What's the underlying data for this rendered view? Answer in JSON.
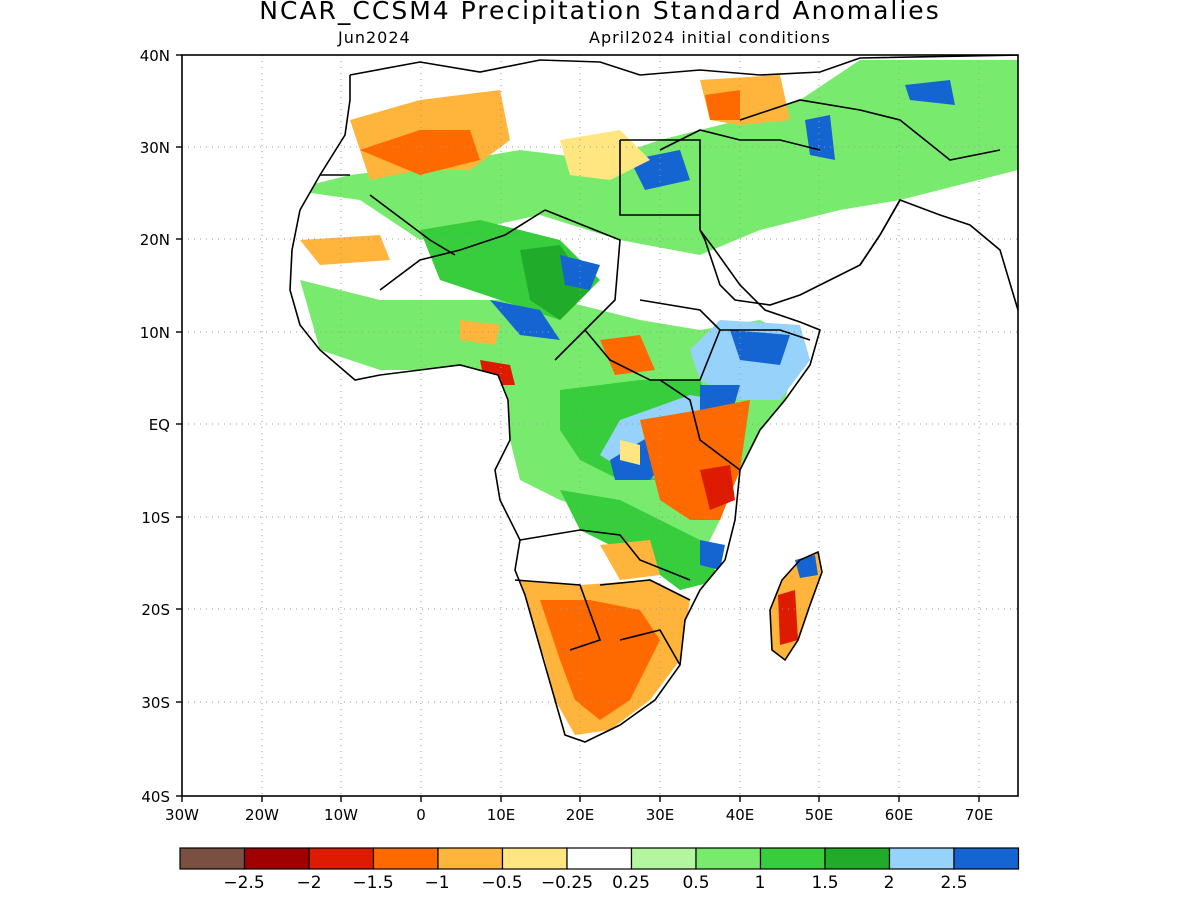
{
  "header": {
    "title": "NCAR_CCSM4 Precipitation Standard Anomalies",
    "month": "Jun2024",
    "init": "April2024 initial conditions"
  },
  "axes": {
    "lat_labels": [
      "40N",
      "30N",
      "20N",
      "10N",
      "EQ",
      "10S",
      "20S",
      "30S",
      "40S"
    ],
    "lon_labels": [
      "30W",
      "20W",
      "10W",
      "0",
      "10E",
      "20E",
      "30E",
      "40E",
      "50E",
      "60E",
      "70E"
    ]
  },
  "colorbar": {
    "colors": [
      "#7a5043",
      "#a00000",
      "#dd1b00",
      "#ff6a00",
      "#ffb43c",
      "#ffe680",
      "#ffffff",
      "#b4f5a0",
      "#78eb6e",
      "#37cd3c",
      "#20ac2a",
      "#96d2fa",
      "#1464d2"
    ],
    "labels": [
      "−2.5",
      "−2",
      "−1.5",
      "−1",
      "−0.5",
      "−0.25",
      "0.25",
      "0.5",
      "1",
      "1.5",
      "2",
      "2.5"
    ]
  }
}
